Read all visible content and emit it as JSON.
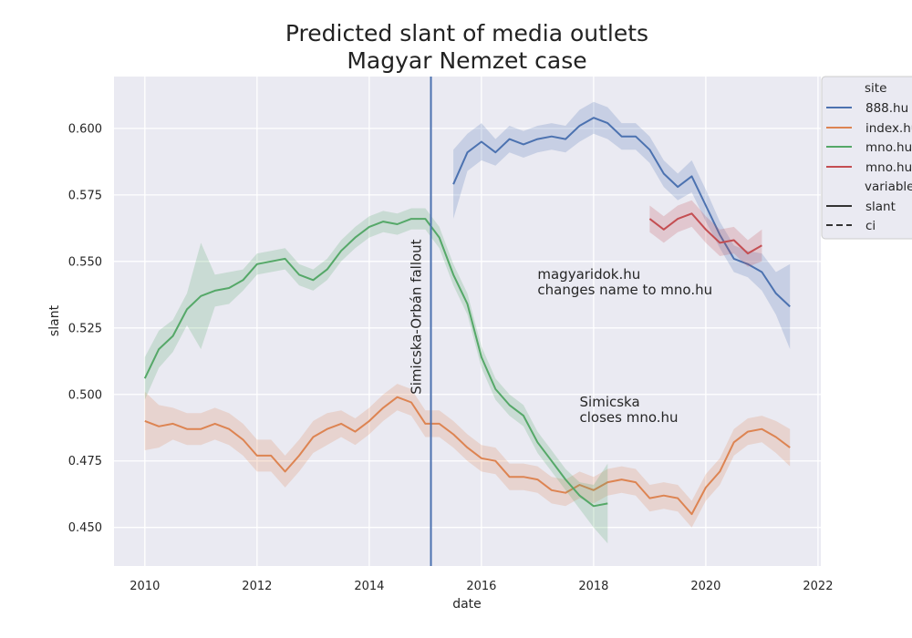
{
  "chart_data": {
    "type": "line",
    "title": "Predicted slant of media outlets",
    "subtitle": "Magyar Nemzet case",
    "xlabel": "date",
    "ylabel": "slant",
    "xlim": [
      2009.45,
      2022.05
    ],
    "ylim": [
      0.4355,
      0.6195
    ],
    "x_ticks": [
      2010,
      2012,
      2014,
      2016,
      2018,
      2020,
      2022
    ],
    "y_ticks": [
      0.45,
      0.475,
      0.5,
      0.525,
      0.55,
      0.575,
      0.6
    ],
    "grid": true,
    "legend": {
      "position": "top-right-outside",
      "hue_title": "site",
      "style_title": "variable",
      "entries": [
        "888.hu",
        "index.hu",
        "mno.hu",
        "mno.hu"
      ],
      "style_entries": [
        "slant",
        "ci"
      ]
    },
    "vline": {
      "x": 2015.1,
      "label": "Simicska-Orbán fallout",
      "color": "#4c72b0"
    },
    "annotations": [
      {
        "text_lines": [
          "magyaridok.hu",
          "changes name to mno.hu"
        ],
        "x": 2017.0,
        "y": 0.5435
      },
      {
        "text_lines": [
          "Simicska",
          "closes mno.hu"
        ],
        "x": 2017.75,
        "y": 0.4955
      }
    ],
    "series": [
      {
        "name": "888.hu",
        "color": "#4c72b0",
        "x": [
          2015.5,
          2015.75,
          2016.0,
          2016.25,
          2016.5,
          2016.75,
          2017.0,
          2017.25,
          2017.5,
          2017.75,
          2018.0,
          2018.25,
          2018.5,
          2018.75,
          2019.0,
          2019.25,
          2019.5,
          2019.75,
          2020.0,
          2020.25,
          2020.5,
          2020.75,
          2021.0,
          2021.25,
          2021.5
        ],
        "y": [
          0.579,
          0.591,
          0.595,
          0.591,
          0.596,
          0.594,
          0.596,
          0.597,
          0.596,
          0.601,
          0.604,
          0.602,
          0.597,
          0.597,
          0.592,
          0.583,
          0.578,
          0.582,
          0.571,
          0.56,
          0.551,
          0.549,
          0.546,
          0.538,
          0.533
        ],
        "ci": [
          0.013,
          0.007,
          0.007,
          0.005,
          0.005,
          0.005,
          0.005,
          0.005,
          0.005,
          0.006,
          0.006,
          0.006,
          0.005,
          0.005,
          0.005,
          0.005,
          0.005,
          0.006,
          0.006,
          0.005,
          0.005,
          0.005,
          0.007,
          0.008,
          0.016
        ]
      },
      {
        "name": "index.hu",
        "color": "#dd8452",
        "x": [
          2010.0,
          2010.25,
          2010.5,
          2010.75,
          2011.0,
          2011.25,
          2011.5,
          2011.75,
          2012.0,
          2012.25,
          2012.5,
          2012.75,
          2013.0,
          2013.25,
          2013.5,
          2013.75,
          2014.0,
          2014.25,
          2014.5,
          2014.75,
          2015.0,
          2015.25,
          2015.5,
          2015.75,
          2016.0,
          2016.25,
          2016.5,
          2016.75,
          2017.0,
          2017.25,
          2017.5,
          2017.75,
          2018.0,
          2018.25,
          2018.5,
          2018.75,
          2019.0,
          2019.25,
          2019.5,
          2019.75,
          2020.0,
          2020.25,
          2020.5,
          2020.75,
          2021.0,
          2021.25,
          2021.5
        ],
        "y": [
          0.49,
          0.488,
          0.489,
          0.487,
          0.487,
          0.489,
          0.487,
          0.483,
          0.477,
          0.477,
          0.471,
          0.477,
          0.484,
          0.487,
          0.489,
          0.486,
          0.49,
          0.495,
          0.499,
          0.497,
          0.489,
          0.489,
          0.485,
          0.48,
          0.476,
          0.475,
          0.469,
          0.469,
          0.468,
          0.464,
          0.463,
          0.466,
          0.464,
          0.467,
          0.468,
          0.467,
          0.461,
          0.462,
          0.461,
          0.455,
          0.465,
          0.471,
          0.482,
          0.486,
          0.487,
          0.484,
          0.48
        ],
        "ci": [
          0.011,
          0.008,
          0.006,
          0.006,
          0.006,
          0.006,
          0.006,
          0.006,
          0.006,
          0.006,
          0.006,
          0.006,
          0.006,
          0.006,
          0.005,
          0.005,
          0.005,
          0.005,
          0.005,
          0.005,
          0.005,
          0.005,
          0.005,
          0.005,
          0.005,
          0.005,
          0.005,
          0.005,
          0.005,
          0.005,
          0.005,
          0.005,
          0.005,
          0.005,
          0.005,
          0.005,
          0.005,
          0.005,
          0.005,
          0.005,
          0.005,
          0.005,
          0.005,
          0.005,
          0.005,
          0.006,
          0.007
        ]
      },
      {
        "name": "mno.hu",
        "color": "#55a868",
        "x": [
          2010.0,
          2010.25,
          2010.5,
          2010.75,
          2011.0,
          2011.25,
          2011.5,
          2011.75,
          2012.0,
          2012.25,
          2012.5,
          2012.75,
          2013.0,
          2013.25,
          2013.5,
          2013.75,
          2014.0,
          2014.25,
          2014.5,
          2014.75,
          2015.0,
          2015.25,
          2015.5,
          2015.75,
          2016.0,
          2016.25,
          2016.5,
          2016.75,
          2017.0,
          2017.25,
          2017.5,
          2017.75,
          2018.0,
          2018.25
        ],
        "y": [
          0.506,
          0.517,
          0.522,
          0.532,
          0.537,
          0.539,
          0.54,
          0.543,
          0.549,
          0.55,
          0.551,
          0.545,
          0.543,
          0.547,
          0.554,
          0.559,
          0.563,
          0.565,
          0.564,
          0.566,
          0.566,
          0.559,
          0.545,
          0.534,
          0.514,
          0.502,
          0.496,
          0.492,
          0.482,
          0.475,
          0.468,
          0.462,
          0.458,
          0.459
        ],
        "ci": [
          0.008,
          0.007,
          0.006,
          0.006,
          0.02,
          0.006,
          0.006,
          0.004,
          0.004,
          0.004,
          0.004,
          0.004,
          0.004,
          0.004,
          0.004,
          0.004,
          0.004,
          0.004,
          0.004,
          0.004,
          0.004,
          0.004,
          0.004,
          0.004,
          0.004,
          0.004,
          0.004,
          0.004,
          0.004,
          0.004,
          0.004,
          0.005,
          0.008,
          0.015
        ]
      },
      {
        "name": "mno.hu",
        "color": "#c44e52",
        "x": [
          2019.0,
          2019.25,
          2019.5,
          2019.75,
          2020.0,
          2020.25,
          2020.5,
          2020.75,
          2021.0
        ],
        "y": [
          0.566,
          0.562,
          0.566,
          0.568,
          0.562,
          0.557,
          0.558,
          0.553,
          0.556
        ],
        "ci": [
          0.005,
          0.005,
          0.005,
          0.005,
          0.005,
          0.005,
          0.005,
          0.005,
          0.006
        ]
      }
    ]
  }
}
